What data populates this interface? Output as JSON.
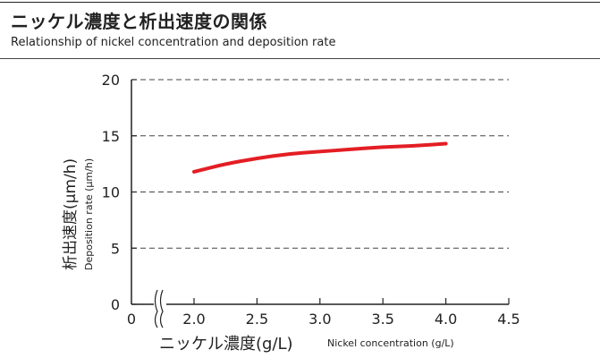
{
  "header": {
    "title": "ニッケル濃度と析出速度の関係",
    "subtitle": "Relationship of nickel concentration and deposition rate"
  },
  "chart_data": {
    "type": "line",
    "xlabel": "ニッケル濃度(g/L)",
    "xlabel_sub": "Nickel concentration (g/L)",
    "ylabel": "析出速度(μm/h)",
    "ylabel_sub": "Deposition rate (μm/h)",
    "xlim": [
      0,
      4.5
    ],
    "ylim": [
      0,
      20
    ],
    "x_ticks": [
      "0",
      "2.0",
      "2.5",
      "3.0",
      "3.5",
      "4.0",
      "4.5"
    ],
    "y_ticks": [
      "0",
      "5",
      "10",
      "15",
      "20"
    ],
    "axis_break": true,
    "grid": "horizontal-dashed",
    "series": [
      {
        "color": "#e31e24",
        "x": [
          2.0,
          2.25,
          2.5,
          2.75,
          3.0,
          3.25,
          3.5,
          3.75,
          4.0
        ],
        "y": [
          11.8,
          12.5,
          13.0,
          13.4,
          13.6,
          13.8,
          14.0,
          14.1,
          14.3
        ]
      }
    ]
  }
}
